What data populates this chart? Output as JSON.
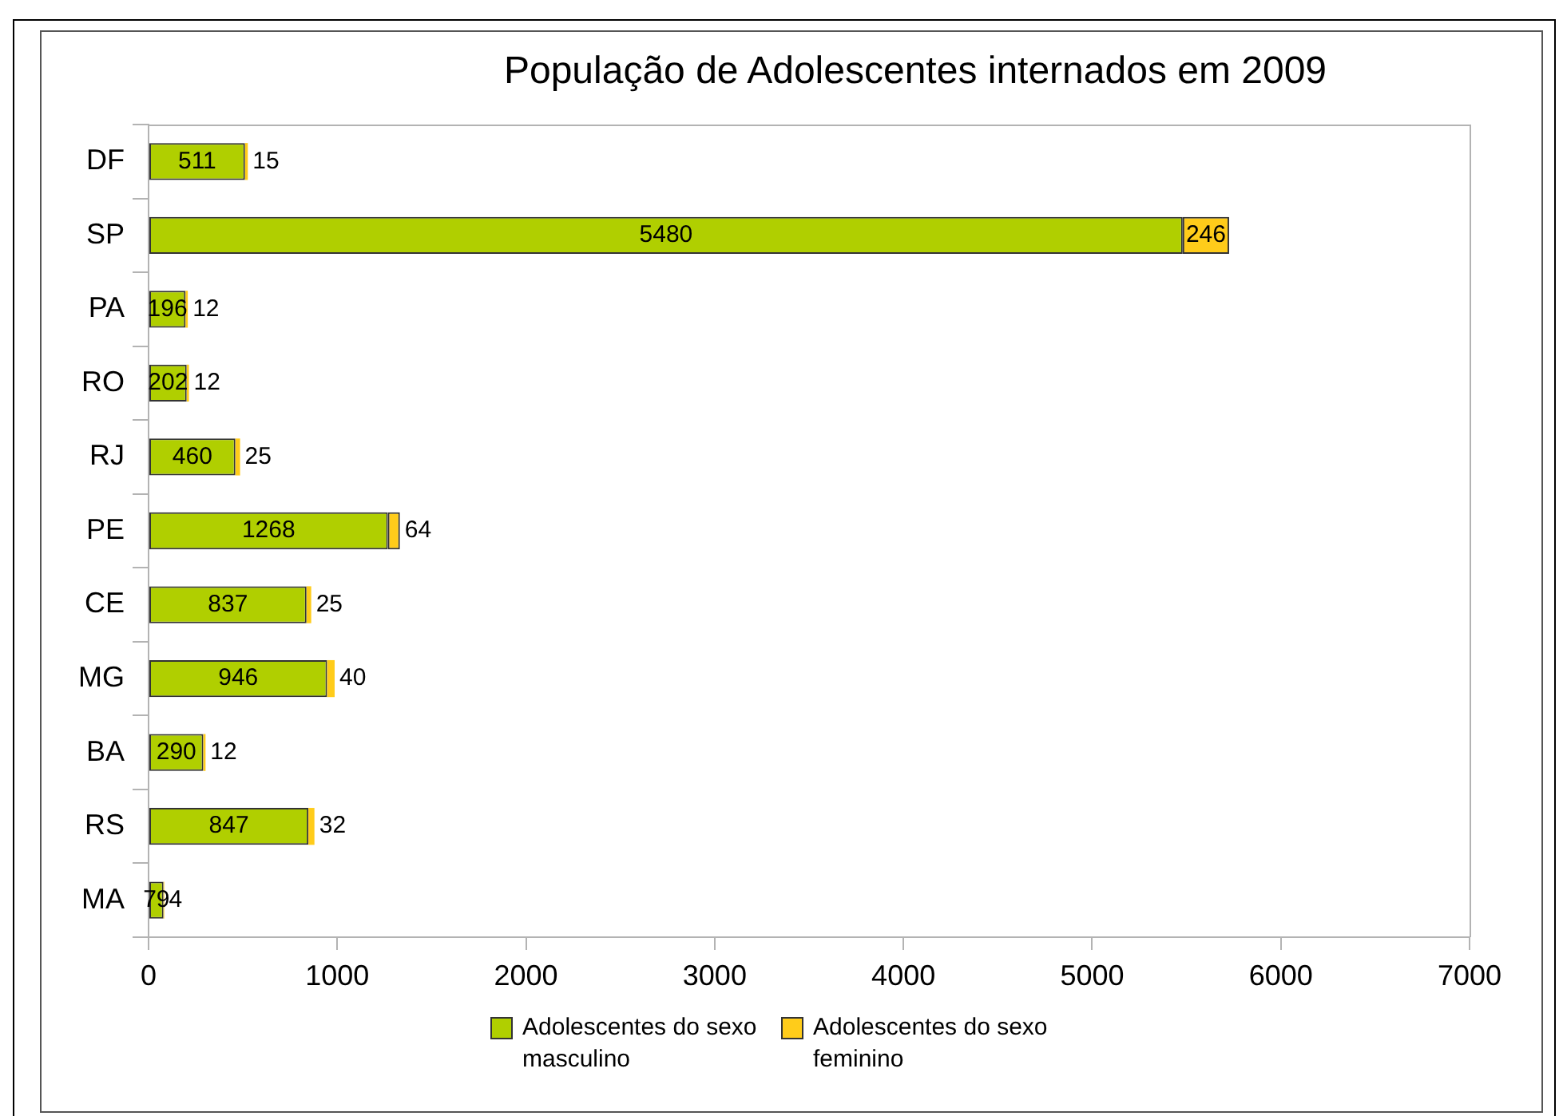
{
  "chart_data": {
    "type": "bar",
    "orientation": "horizontal",
    "stacked": true,
    "title": "População de Adolescentes internados em 2009",
    "categories": [
      "DF",
      "SP",
      "PA",
      "RO",
      "RJ",
      "PE",
      "CE",
      "MG",
      "BA",
      "RS",
      "MA"
    ],
    "series": [
      {
        "name": "Adolescentes do sexo masculino",
        "color": "#b0cf00",
        "values": [
          511,
          5480,
          196,
          202,
          460,
          1268,
          837,
          946,
          290,
          847,
          79
        ]
      },
      {
        "name": "Adolescentes do sexo feminino",
        "color": "#ffcc1a",
        "values": [
          15,
          246,
          12,
          12,
          25,
          64,
          25,
          40,
          12,
          32,
          4
        ]
      }
    ],
    "xlim": [
      0,
      7000
    ],
    "xticks": [
      0,
      1000,
      2000,
      3000,
      4000,
      5000,
      6000,
      7000
    ],
    "grid": false,
    "legend": "bottom",
    "data_labels": true
  }
}
